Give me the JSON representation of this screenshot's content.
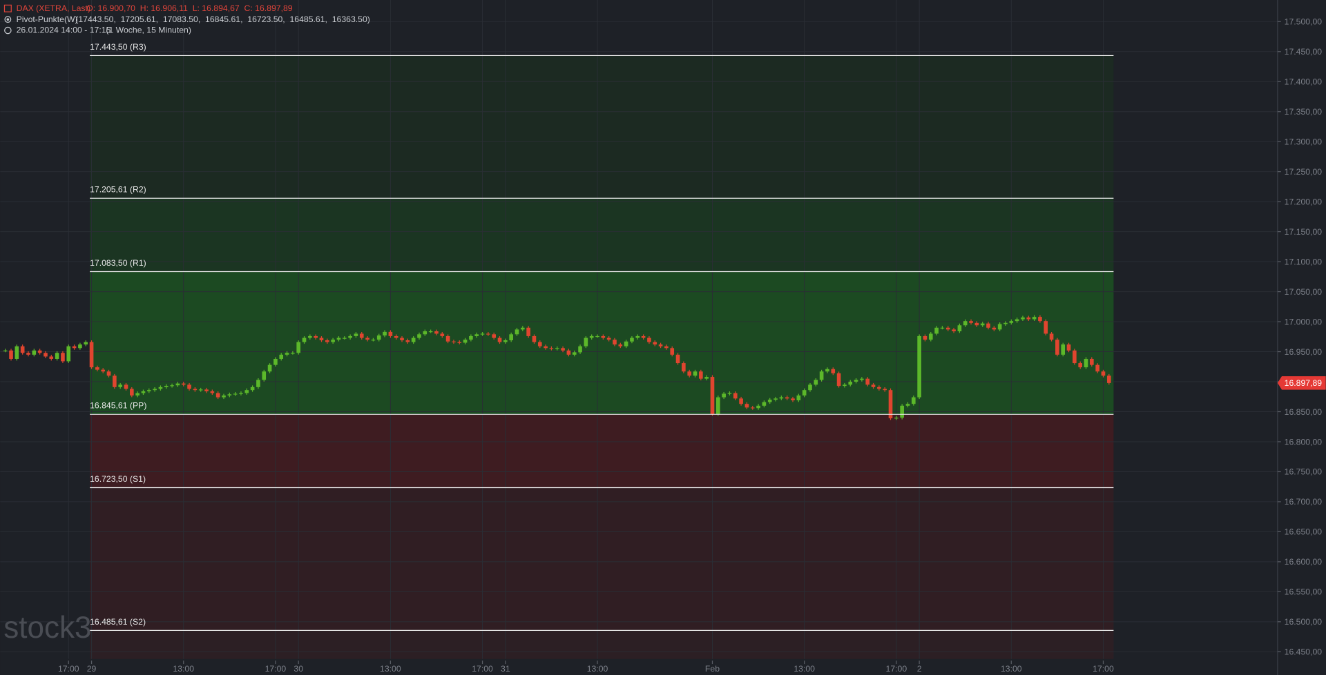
{
  "chart_data": {
    "type": "candlestick",
    "instrument": "DAX (XETRA, Last)",
    "ohlc_text": "O: 16.900,70  H: 16.906,11  L: 16.894,67  C: 16.897,89",
    "indicator": "Pivot-Punkte(W)",
    "indicator_values": "(17443.50,  17205.61,  17083.50,  16845.61,  16723.50,  16485.61,  16363.50)",
    "period": "26.01.2024 14:00 - 17:15",
    "period_detail": "(1 Woche, 15 Minuten)",
    "watermark": "stock3",
    "up_color": "#5cb82a",
    "down_color": "#e0452f",
    "series": [
      {
        "name": "DAX (XETRA, Last)",
        "values": [
          16952,
          16938,
          16959,
          16948,
          16945,
          16952,
          16948,
          16942,
          16938,
          16948,
          16934,
          16959,
          16956,
          16962,
          16966,
          16924,
          16920,
          16917,
          16910,
          16891,
          16895,
          16888,
          16877,
          16881,
          16884,
          16886,
          16888,
          16891,
          16893,
          16894,
          16897,
          16895,
          16888,
          16886,
          16887,
          16884,
          16881,
          16874,
          16877,
          16879,
          16880,
          16881,
          16886,
          16891,
          16903,
          16917,
          16928,
          16938,
          16945,
          16948,
          16948,
          16966,
          16973,
          16976,
          16973,
          16969,
          16966,
          16970,
          16973,
          16973,
          16976,
          16980,
          16973,
          16970,
          16970,
          16977,
          16983,
          16976,
          16973,
          16969,
          16966,
          16973,
          16979,
          16984,
          16984,
          16980,
          16976,
          16967,
          16966,
          16965,
          16970,
          16976,
          16979,
          16980,
          16979,
          16973,
          16966,
          16969,
          16979,
          16987,
          16990,
          16976,
          16966,
          16959,
          16956,
          16955,
          16956,
          16952,
          16945,
          16949,
          16959,
          16973,
          16976,
          16976,
          16973,
          16970,
          16962,
          16959,
          16967,
          16973,
          16976,
          16973,
          16966,
          16962,
          16959,
          16956,
          16945,
          16931,
          16917,
          16910,
          16917,
          16905,
          16908,
          16846,
          16874,
          16880,
          16881,
          16872,
          16863,
          16857,
          16856,
          16860,
          16866,
          16870,
          16872,
          16874,
          16872,
          16869,
          16877,
          16886,
          16895,
          16903,
          16917,
          16921,
          16914,
          16893,
          16895,
          16900,
          16903,
          16905,
          16895,
          16891,
          16888,
          16886,
          16839,
          16840,
          16860,
          16863,
          16874,
          16976,
          16970,
          16980,
          16990,
          16990,
          16987,
          16984,
          16994,
          17001,
          16998,
          16994,
          16997,
          16990,
          16987,
          16996,
          16998,
          17001,
          17004,
          17007,
          17004,
          17008,
          17001,
          16980,
          16970,
          16945,
          16962,
          16952,
          16931,
          16924,
          16938,
          16928,
          16917,
          16910,
          16897.89
        ]
      }
    ],
    "last_price": {
      "value": 16897.89,
      "label": "16.897,89"
    },
    "pivot_levels": [
      {
        "value": 17443.5,
        "label": "17.443,50 (R3)"
      },
      {
        "value": 17205.61,
        "label": "17.205,61 (R2)"
      },
      {
        "value": 17083.5,
        "label": "17.083,50 (R1)"
      },
      {
        "value": 16845.61,
        "label": "16.845,61 (PP)"
      },
      {
        "value": 16723.5,
        "label": "16.723,50 (S1)"
      },
      {
        "value": 16485.61,
        "label": "16.485,61 (S2)"
      }
    ],
    "zone_colors": [
      "#1c2a22",
      "#1b3522",
      "#1c4a22",
      "#3e1c21",
      "#301e23",
      "#2c1f24"
    ],
    "ylim": [
      16438,
      17536
    ],
    "yticks": [
      {
        "value": 17500,
        "label": "17.500,00"
      },
      {
        "value": 17450,
        "label": "17.450,00"
      },
      {
        "value": 17400,
        "label": "17.400,00"
      },
      {
        "value": 17350,
        "label": "17.350,00"
      },
      {
        "value": 17300,
        "label": "17.300,00"
      },
      {
        "value": 17250,
        "label": "17.250,00"
      },
      {
        "value": 17200,
        "label": "17.200,00"
      },
      {
        "value": 17150,
        "label": "17.150,00"
      },
      {
        "value": 17100,
        "label": "17.100,00"
      },
      {
        "value": 17050,
        "label": "17.050,00"
      },
      {
        "value": 17000,
        "label": "17.000,00"
      },
      {
        "value": 16950,
        "label": "16.950,00"
      },
      {
        "value": 16900,
        "label": "16.900,00"
      },
      {
        "value": 16850,
        "label": "16.850,00"
      },
      {
        "value": 16800,
        "label": "16.800,00"
      },
      {
        "value": 16750,
        "label": "16.750,00"
      },
      {
        "value": 16700,
        "label": "16.700,00"
      },
      {
        "value": 16650,
        "label": "16.650,00"
      },
      {
        "value": 16600,
        "label": "16.600,00"
      },
      {
        "value": 16550,
        "label": "16.550,00"
      },
      {
        "value": 16500,
        "label": "16.500,00"
      },
      {
        "value": 16450,
        "label": "16.450,00"
      }
    ],
    "xticks": [
      {
        "value": 11,
        "label": "17:00"
      },
      {
        "value": 15,
        "label": "29"
      },
      {
        "value": 31,
        "label": "13:00"
      },
      {
        "value": 47,
        "label": "17:00"
      },
      {
        "value": 51,
        "label": "30"
      },
      {
        "value": 67,
        "label": "13:00"
      },
      {
        "value": 83,
        "label": "17:00"
      },
      {
        "value": 87,
        "label": "31"
      },
      {
        "value": 103,
        "label": "13:00"
      },
      {
        "value": 123,
        "label": "Feb"
      },
      {
        "value": 139,
        "label": "13:00"
      },
      {
        "value": 155,
        "label": "17:00"
      },
      {
        "value": 159,
        "label": "2"
      },
      {
        "value": 175,
        "label": "13:00"
      },
      {
        "value": 191,
        "label": "17:00"
      }
    ],
    "grid": true
  }
}
